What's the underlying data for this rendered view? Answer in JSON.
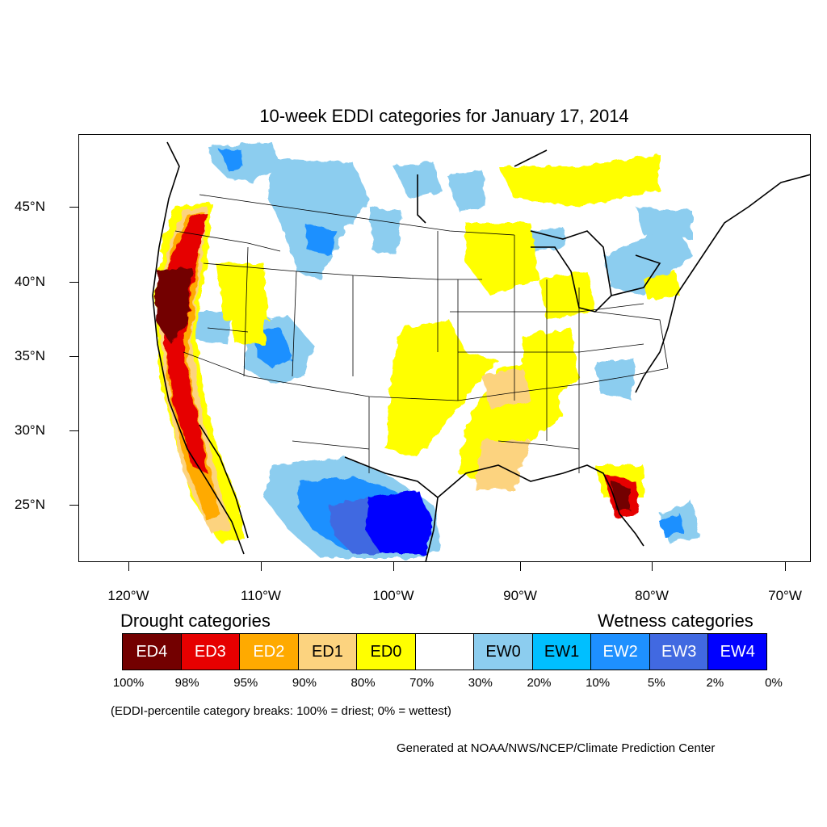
{
  "title": "10-week EDDI categories for January 17, 2014",
  "lat_labels": [
    "45°N",
    "40°N",
    "35°N",
    "30°N",
    "25°N"
  ],
  "lon_labels": [
    "120°W",
    "110°W",
    "100°W",
    "90°W",
    "80°W",
    "70°W"
  ],
  "legend": {
    "drought_heading": "Drought categories",
    "wetness_heading": "Wetness categories",
    "categories": [
      {
        "label": "ED4",
        "color": "#730000",
        "text_color": "#ffffff"
      },
      {
        "label": "ED3",
        "color": "#e60000",
        "text_color": "#ffffff"
      },
      {
        "label": "ED2",
        "color": "#ffaa00",
        "text_color": "#ffffff"
      },
      {
        "label": "ED1",
        "color": "#fcd37f",
        "text_color": "#000000"
      },
      {
        "label": "ED0",
        "color": "#ffff00",
        "text_color": "#000000"
      },
      {
        "label": "",
        "color": "#ffffff",
        "text_color": "#000000"
      },
      {
        "label": "EW0",
        "color": "#8ccdef",
        "text_color": "#000000"
      },
      {
        "label": "EW1",
        "color": "#00bfff",
        "text_color": "#000000"
      },
      {
        "label": "EW2",
        "color": "#1e90ff",
        "text_color": "#ffffff"
      },
      {
        "label": "EW3",
        "color": "#4169e1",
        "text_color": "#ffffff"
      },
      {
        "label": "EW4",
        "color": "#0000ff",
        "text_color": "#ffffff"
      }
    ],
    "breaks": [
      "100%",
      "98%",
      "95%",
      "90%",
      "80%",
      "70%",
      "30%",
      "20%",
      "10%",
      "5%",
      "2%",
      "0%"
    ]
  },
  "note": "(EDDI-percentile category breaks: 100% = driest; 0% = wettest)",
  "credit": "Generated at NOAA/NWS/NCEP/Climate Prediction Center"
}
